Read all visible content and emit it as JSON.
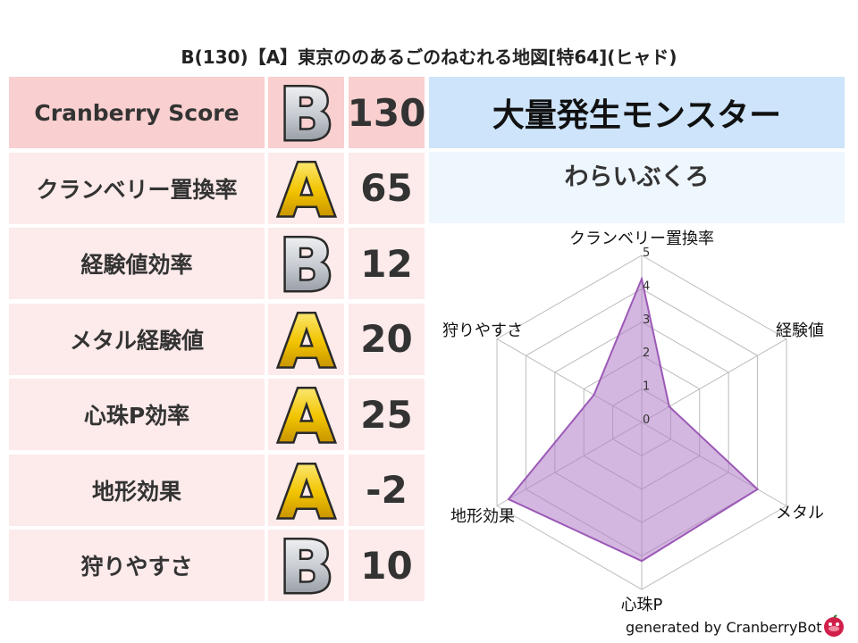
{
  "title": "B(130)【A】東京ののあるごのねむれる地図[特64](ヒャド)",
  "rows": [
    {
      "label": "Cranberry Score",
      "grade": "B",
      "value": "130"
    },
    {
      "label": "クランベリー置換率",
      "grade": "A",
      "value": "65"
    },
    {
      "label": "経験値効率",
      "grade": "B",
      "value": "12"
    },
    {
      "label": "メタル経験値",
      "grade": "A",
      "value": "20"
    },
    {
      "label": "心珠P効率",
      "grade": "A",
      "value": "25"
    },
    {
      "label": "地形効果",
      "grade": "A",
      "value": "-2"
    },
    {
      "label": "狩りやすさ",
      "grade": "B",
      "value": "10"
    }
  ],
  "monster": {
    "heading": "大量発生モンスター",
    "name": "わらいぶくろ"
  },
  "footer": "generated by CranberryBot",
  "colors": {
    "header_bg": "#f9cfcf",
    "row_bg": "#fdeaea",
    "monster_bg": "#cde4fb",
    "name_bg": "#eef6fe",
    "radar_fill": "#b07cc6",
    "radar_line": "#9b59b6",
    "grade_A": "#f2c400",
    "grade_B": "#c8ccd2"
  },
  "chart_data": {
    "type": "radar",
    "axes": [
      "クランベリー置換率",
      "経験値",
      "メタル",
      "心珠P",
      "地形効果",
      "狩りやすさ"
    ],
    "values": [
      4.3,
      0.95,
      4.0,
      4.15,
      4.6,
      1.65
    ],
    "rlim": [
      0,
      5
    ],
    "ticks": [
      "0",
      "1",
      "2",
      "3",
      "4",
      "5"
    ],
    "grid": true
  }
}
